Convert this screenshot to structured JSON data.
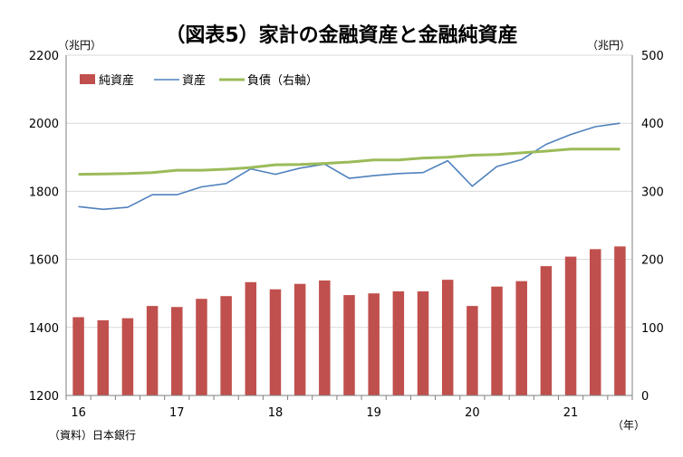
{
  "chart_data": {
    "type": "bar+line",
    "title": "（図表5）家計の金融資産と金融純資産",
    "left_unit": "（兆円）",
    "right_unit": "（兆円）",
    "x_unit": "（年）",
    "source": "（資料）日本銀行",
    "left_axis": {
      "min": 1200,
      "max": 2200,
      "ticks": [
        "1200",
        "1400",
        "1600",
        "1800",
        "2000",
        "2200"
      ]
    },
    "right_axis": {
      "min": 0,
      "max": 500,
      "ticks": [
        "0",
        "100",
        "200",
        "300",
        "400",
        "500"
      ]
    },
    "year_labels": [
      {
        "label": "16",
        "quarter_index": 0
      },
      {
        "label": "17",
        "quarter_index": 4
      },
      {
        "label": "18",
        "quarter_index": 8
      },
      {
        "label": "19",
        "quarter_index": 12
      },
      {
        "label": "20",
        "quarter_index": 16
      },
      {
        "label": "21",
        "quarter_index": 20
      }
    ],
    "series": [
      {
        "name": "純資産",
        "kind": "bar",
        "axis": "left",
        "color": "#c0504d",
        "values": [
          1430,
          1421,
          1427,
          1463,
          1460,
          1484,
          1492,
          1533,
          1512,
          1528,
          1538,
          1495,
          1500,
          1506,
          1506,
          1540,
          1463,
          1520,
          1536,
          1580,
          1608,
          1630,
          1638
        ]
      },
      {
        "name": "資産",
        "kind": "line",
        "axis": "left",
        "color": "#4f81bd",
        "values": [
          1755,
          1747,
          1753,
          1790,
          1790,
          1813,
          1823,
          1866,
          1850,
          1868,
          1880,
          1838,
          1846,
          1852,
          1855,
          1890,
          1815,
          1873,
          1893,
          1938,
          1967,
          1990,
          2000
        ]
      },
      {
        "name": "負債（右軸）",
        "kind": "line",
        "axis": "right",
        "color": "#9bbb59",
        "values": [
          325,
          325.5,
          326,
          327.5,
          331,
          331,
          332.5,
          335,
          339,
          339.5,
          341,
          343,
          346,
          346,
          349,
          350,
          353,
          354,
          356.5,
          359,
          362,
          362,
          362
        ]
      }
    ]
  }
}
